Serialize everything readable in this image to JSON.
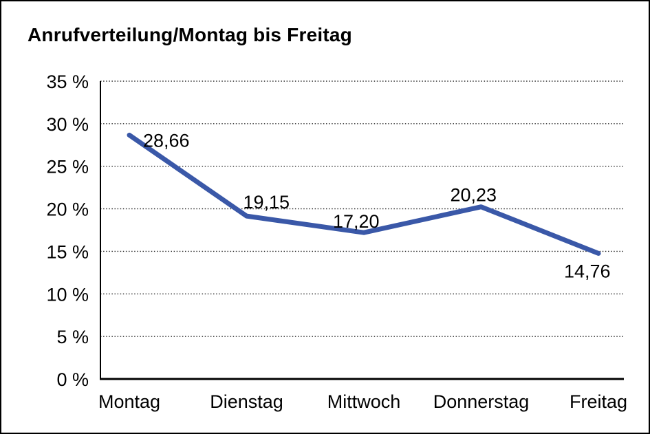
{
  "chart_data": {
    "type": "line",
    "title": "Anrufverteilung/Montag bis Freitag",
    "categories": [
      "Montag",
      "Dienstag",
      "Mittwoch",
      "Donnerstag",
      "Freitag"
    ],
    "values": [
      28.66,
      19.15,
      17.2,
      20.23,
      14.76
    ],
    "value_labels": [
      "28,66",
      "19,15",
      "17,20",
      "20,23",
      "14,76"
    ],
    "y_ticks": [
      0,
      5,
      10,
      15,
      20,
      25,
      30,
      35
    ],
    "y_tick_labels": [
      "0 %",
      "5 %",
      "10 %",
      "15 %",
      "20 %",
      "25 %",
      "30 %",
      "35 %"
    ],
    "ylim": [
      0,
      35
    ],
    "xlabel": "",
    "ylabel": "",
    "legend": "none",
    "grid": "horizontal-dotted",
    "line_color": "#3A58A8",
    "grid_color": "#2b2b2b",
    "axis_color": "#000000",
    "text_color": "#000000",
    "background_color": "#ffffff",
    "border_color": "#000000"
  }
}
